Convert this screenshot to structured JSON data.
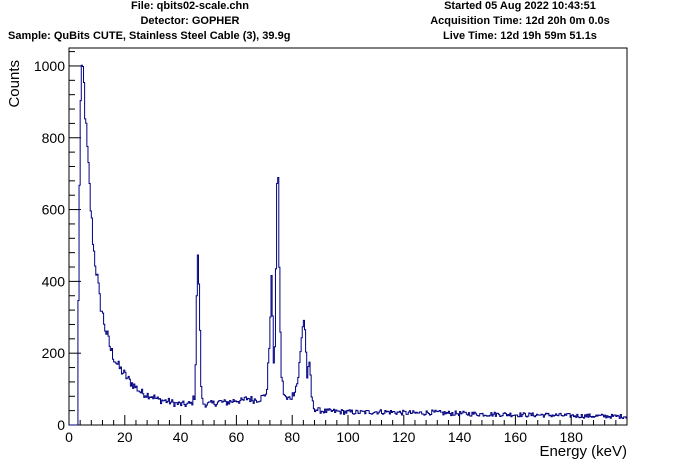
{
  "header": {
    "file": "File: qbits02-scale.chn",
    "detector": "Detector: GOPHER",
    "sample": "Sample: QuBits CUTE, Stainless Steel Cable (3), 39.9g",
    "started": "Started 05 Aug 2022 10:43:51",
    "acquisition": "Acquisition Time: 12d 20h 0m 0.0s",
    "live": "Live Time: 12d 19h 59m 51.1s"
  },
  "colors": {
    "series": "#000080",
    "axis": "#000000",
    "background": "#ffffff"
  },
  "chart_data": {
    "type": "line",
    "xlabel": "Energy (keV)",
    "ylabel": "Counts",
    "xlim": [
      0,
      200
    ],
    "ylim": [
      0,
      1050
    ],
    "x_ticks": [
      0,
      20,
      40,
      60,
      80,
      100,
      120,
      140,
      160,
      180
    ],
    "y_ticks": [
      0,
      200,
      400,
      600,
      800,
      1000
    ],
    "grid": false,
    "legend": "none",
    "series": [
      {
        "style": "step",
        "x": [
          0,
          3,
          4,
          4.5,
          5,
          5.5,
          6,
          7,
          8,
          9,
          10,
          11,
          12,
          13,
          14,
          15,
          16,
          17,
          18,
          19,
          20,
          22,
          24,
          26,
          28,
          30,
          32,
          34,
          36,
          38,
          40,
          42,
          44,
          45,
          45.5,
          46,
          46.5,
          47,
          47.5,
          48,
          50,
          52,
          54,
          56,
          58,
          60,
          62,
          64,
          66,
          68,
          70,
          71,
          72,
          72.5,
          73,
          73.5,
          74,
          74.5,
          75,
          75.5,
          76,
          77,
          78,
          80,
          82,
          83,
          84,
          84.5,
          85,
          85.5,
          86,
          86.5,
          87,
          87.5,
          88,
          89,
          90,
          92,
          95,
          100,
          105,
          110,
          115,
          120,
          125,
          130,
          135,
          140,
          145,
          150,
          155,
          160,
          165,
          170,
          175,
          180,
          185,
          190,
          195,
          200
        ],
        "y": [
          0,
          0,
          850,
          960,
          985,
          930,
          840,
          710,
          580,
          480,
          420,
          350,
          310,
          270,
          240,
          210,
          190,
          175,
          160,
          150,
          140,
          120,
          105,
          90,
          85,
          80,
          70,
          68,
          65,
          60,
          58,
          57,
          60,
          80,
          200,
          470,
          440,
          250,
          80,
          60,
          58,
          60,
          65,
          62,
          65,
          70,
          66,
          75,
          70,
          72,
          80,
          100,
          250,
          420,
          310,
          120,
          300,
          670,
          660,
          400,
          150,
          90,
          70,
          80,
          120,
          200,
          300,
          285,
          200,
          120,
          170,
          150,
          80,
          55,
          45,
          42,
          40,
          38,
          38,
          36,
          35,
          37,
          36,
          34,
          33,
          35,
          33,
          32,
          31,
          30,
          30,
          29,
          28,
          28,
          27,
          26,
          25,
          25,
          24,
          24
        ]
      }
    ]
  }
}
